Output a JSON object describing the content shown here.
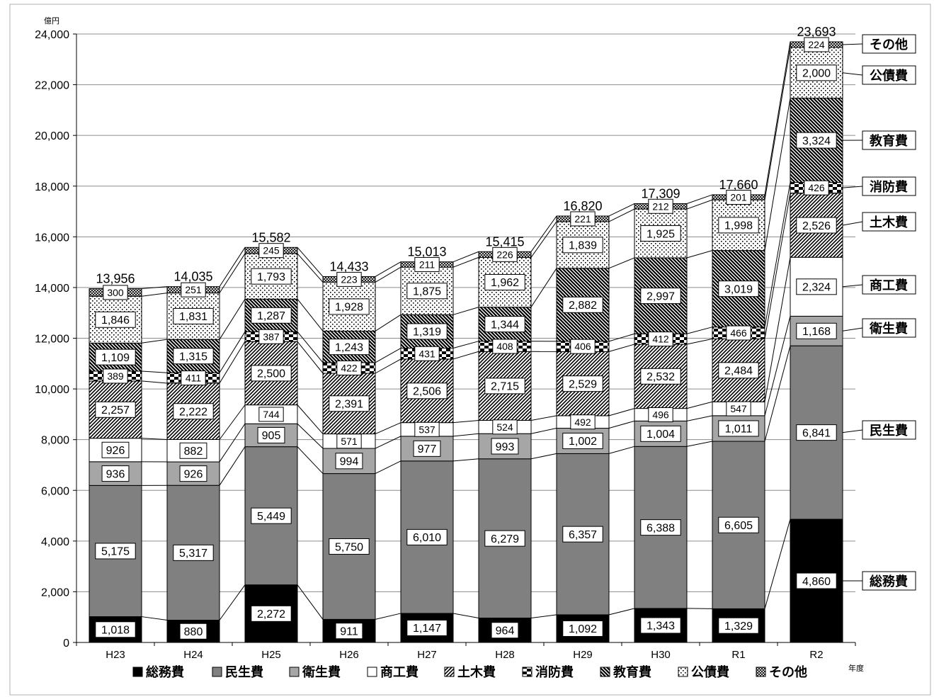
{
  "chart_data": {
    "type": "bar",
    "stacked": true,
    "title": "",
    "yunit": "億円",
    "xunit": "年度",
    "ylim": [
      0,
      24000
    ],
    "ytick_step": 2000,
    "grid": true,
    "legend_position": "bottom",
    "categories": [
      "H23",
      "H24",
      "H25",
      "H26",
      "H27",
      "H28",
      "H29",
      "H30",
      "R1",
      "R2"
    ],
    "totals": [
      13956,
      14035,
      15582,
      14433,
      15013,
      15415,
      16820,
      17309,
      17660,
      23693
    ],
    "series": [
      {
        "name": "総務費",
        "values": [
          1018,
          880,
          2272,
          911,
          1147,
          964,
          1092,
          1343,
          1329,
          4860
        ],
        "pattern": "solid-black"
      },
      {
        "name": "民生費",
        "values": [
          5175,
          5317,
          5449,
          5750,
          6010,
          6279,
          6357,
          6388,
          6605,
          6841
        ],
        "pattern": "dark-gray"
      },
      {
        "name": "衛生費",
        "values": [
          936,
          926,
          905,
          994,
          977,
          993,
          1002,
          1004,
          1011,
          1168
        ],
        "pattern": "light-gray"
      },
      {
        "name": "商工費",
        "values": [
          926,
          882,
          744,
          571,
          537,
          524,
          492,
          496,
          547,
          2324
        ],
        "pattern": "white"
      },
      {
        "name": "土木費",
        "values": [
          2257,
          2222,
          2500,
          2391,
          2506,
          2715,
          2529,
          2532,
          2484,
          2526
        ],
        "pattern": "fine-diagonal"
      },
      {
        "name": "消防費",
        "values": [
          389,
          411,
          387,
          422,
          431,
          408,
          406,
          412,
          466,
          426
        ],
        "pattern": "checker"
      },
      {
        "name": "教育費",
        "values": [
          1109,
          1315,
          1287,
          1243,
          1319,
          1344,
          2882,
          2997,
          3019,
          3324
        ],
        "pattern": "bold-diagonal"
      },
      {
        "name": "公債費",
        "values": [
          1846,
          1831,
          1793,
          1928,
          1875,
          1962,
          1839,
          1925,
          1998,
          2000
        ],
        "pattern": "dots"
      },
      {
        "name": "その他",
        "values": [
          300,
          251,
          245,
          223,
          211,
          226,
          221,
          212,
          201,
          224
        ],
        "pattern": "cross-hatch"
      }
    ]
  }
}
